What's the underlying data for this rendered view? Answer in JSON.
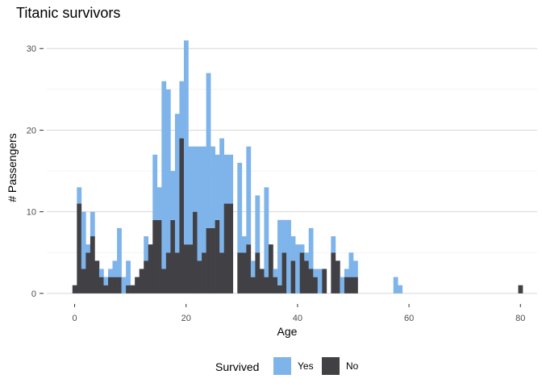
{
  "chart_data": {
    "type": "bar",
    "stacked": true,
    "title": "Titanic survivors",
    "xlabel": "Age",
    "ylabel": "# Passengers",
    "xlim": [
      -5,
      83
    ],
    "ylim": [
      -1,
      32
    ],
    "x_ticks": [
      0,
      20,
      40,
      60,
      80
    ],
    "y_ticks": [
      0,
      10,
      20,
      30
    ],
    "bin_width": 0.8,
    "grid": "horizontal major",
    "legend": {
      "title": "Survived",
      "position": "bottom",
      "entries": [
        {
          "label": "Yes",
          "color": "#7eb4ea"
        },
        {
          "label": "No",
          "color": "#414045"
        }
      ]
    },
    "x": [
      0,
      0.8,
      1.6,
      2.4,
      3.2,
      4.0,
      4.8,
      5.6,
      6.4,
      7.2,
      8.0,
      8.8,
      9.6,
      10.4,
      11.2,
      12.0,
      12.8,
      13.6,
      14.4,
      15.2,
      16.0,
      16.8,
      17.6,
      18.4,
      19.2,
      20.0,
      20.8,
      21.6,
      22.4,
      23.2,
      24.0,
      24.8,
      25.6,
      26.4,
      27.2,
      28.0,
      28.8,
      29.6,
      30.4,
      31.2,
      32.0,
      32.8,
      33.6,
      34.4,
      35.2,
      36.0,
      36.8,
      37.6,
      38.4,
      39.2,
      40.0,
      40.8,
      41.6,
      42.4,
      43.2,
      44.0,
      44.8,
      45.6,
      46.4,
      47.2,
      48.0,
      48.8,
      49.6,
      50.4,
      51.2,
      52.0,
      52.8,
      53.6,
      54.4,
      55.2,
      56.0,
      56.8,
      57.6,
      58.4,
      59.2,
      60.0,
      60.8,
      61.6,
      62.4,
      63.2,
      64.0,
      64.8,
      65.6,
      66.4,
      67.2,
      68.0,
      68.8,
      69.6,
      70.4,
      71.2,
      72.0,
      72.8,
      73.6,
      74.4,
      75.2,
      76.0,
      76.8,
      77.6,
      78.4,
      79.2,
      80.0
    ],
    "series": [
      {
        "name": "No",
        "values": [
          1,
          11,
          3,
          5,
          7,
          4,
          2,
          1,
          2,
          2,
          2,
          0,
          1,
          1,
          2,
          3,
          4,
          6,
          9,
          9,
          3,
          5,
          9,
          5,
          19,
          6,
          6,
          10,
          4,
          5,
          8,
          8,
          9,
          5,
          11,
          11,
          0,
          5,
          5,
          6,
          2,
          5,
          3,
          2,
          6,
          2,
          1,
          5,
          0,
          4,
          0,
          5,
          4,
          3,
          2,
          0,
          3,
          0,
          5,
          4,
          0,
          2,
          2,
          2,
          0,
          0,
          0,
          0,
          0,
          0,
          0,
          0,
          0,
          0,
          0,
          0,
          0,
          0,
          0,
          0,
          0,
          0,
          0,
          0,
          0,
          0,
          0,
          0,
          0,
          0,
          0,
          0,
          0,
          0,
          0,
          0,
          0,
          0,
          0,
          0,
          1
        ]
      },
      {
        "name": "Yes",
        "values": [
          0,
          2,
          7,
          1,
          3,
          0,
          1,
          1,
          1,
          2,
          6,
          2,
          3,
          0,
          0,
          0,
          3,
          0,
          8,
          4,
          23,
          20,
          6,
          17,
          7,
          25,
          12,
          8,
          14,
          13,
          19,
          10,
          8,
          14,
          6,
          6,
          0,
          11,
          2,
          12,
          2,
          7,
          0,
          11,
          0,
          1,
          8,
          4,
          9,
          3,
          6,
          1,
          1,
          5,
          1,
          3,
          0,
          0,
          2,
          0,
          2,
          1,
          3,
          2,
          0,
          0,
          0,
          0,
          0,
          0,
          0,
          0,
          2,
          1,
          0,
          0,
          0,
          0,
          0,
          0,
          0,
          0,
          0,
          0,
          0,
          0,
          0,
          0,
          0,
          0,
          0,
          0,
          0,
          0,
          0,
          0,
          0,
          0,
          0,
          0,
          0
        ]
      }
    ]
  }
}
